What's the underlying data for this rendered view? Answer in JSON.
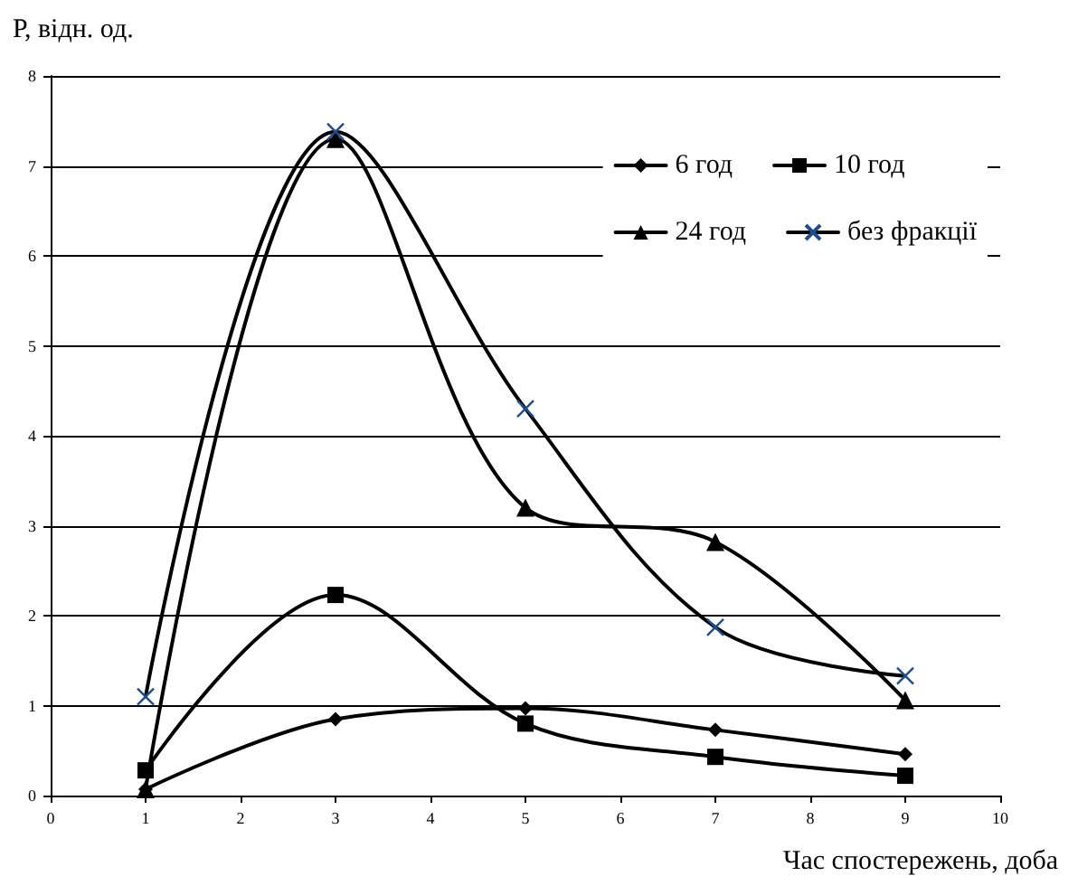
{
  "chart_data": {
    "type": "line",
    "xlabel": "Час спостережень, доба",
    "ylabel": "Р, відн. од.",
    "x": [
      1,
      3,
      5,
      7,
      9
    ],
    "series": [
      {
        "name": "6 год",
        "color": "#000000",
        "marker": "diamond",
        "values": [
          0.07,
          0.85,
          0.97,
          0.73,
          0.46
        ]
      },
      {
        "name": "10 год",
        "color": "#000000",
        "marker": "square",
        "values": [
          0.28,
          2.23,
          0.8,
          0.43,
          0.22
        ]
      },
      {
        "name": "24 год",
        "color": "#000000",
        "marker": "triangle",
        "values": [
          0.07,
          7.3,
          3.2,
          2.82,
          1.06
        ]
      },
      {
        "name": "без фракції",
        "color": "#000000",
        "marker": "cross",
        "values": [
          1.1,
          7.38,
          4.3,
          1.87,
          1.33
        ]
      }
    ],
    "xlim": [
      0,
      10
    ],
    "xticks": [
      0,
      1,
      2,
      3,
      4,
      5,
      6,
      7,
      8,
      9,
      10
    ],
    "ylim": [
      0,
      8
    ],
    "yticks": [
      0,
      1,
      2,
      3,
      4,
      5,
      6,
      7,
      8
    ],
    "grid": "y",
    "legend": "top right",
    "line_style": "solid"
  }
}
